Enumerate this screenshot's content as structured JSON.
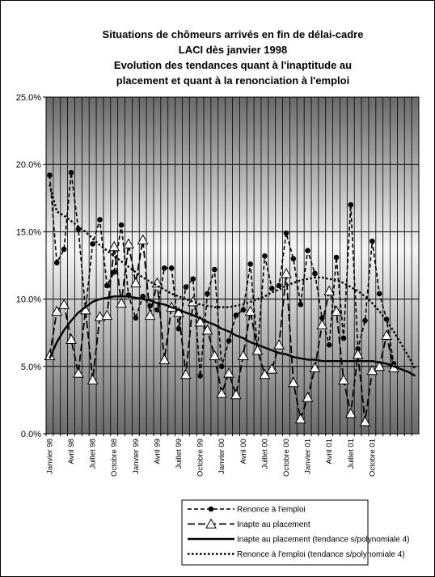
{
  "chart_data": {
    "type": "line",
    "title": [
      "Situations de chômeurs arrivés en fin de délai-cadre",
      "LACI dès janvier 1998",
      "Evolution des tendances quant à l'inaptitude au",
      "placement et quant à la renonciation à l'emploi"
    ],
    "categories": [
      "Janvier 98",
      null,
      null,
      "Avril 98",
      null,
      null,
      "Juillet 98",
      null,
      null,
      "Octobre 98",
      null,
      null,
      "Janvier 99",
      null,
      null,
      "Avril 99",
      null,
      null,
      "Juillet 99",
      null,
      null,
      "Octobre 99",
      null,
      null,
      "Janvier 00",
      null,
      null,
      "Avril 00",
      null,
      null,
      "Juillet 00",
      null,
      null,
      "Octobre 00",
      null,
      null,
      "Janvier 01",
      null,
      null,
      "Avril 01",
      null,
      null,
      "Juillet 01",
      null,
      null,
      "Octobre 01",
      null,
      null,
      null,
      null,
      null,
      null
    ],
    "ylim": [
      0,
      25
    ],
    "yticks": [
      {
        "value": 0,
        "label": "0.0%"
      },
      {
        "value": 5,
        "label": "5.0%"
      },
      {
        "value": 10,
        "label": "10.0%"
      },
      {
        "value": 15,
        "label": "15.0%"
      },
      {
        "value": 20,
        "label": "20.0%"
      },
      {
        "value": 25,
        "label": "25.0%"
      }
    ],
    "grid": true,
    "legend": "bottom",
    "series": [
      {
        "name": "Renonce à l'emploi",
        "color": "#000000",
        "marker": "circle",
        "line": "dashed",
        "values": [
          19.2,
          12.7,
          13.7,
          19.4,
          15.2,
          9.2,
          14.1,
          15.9,
          11.0,
          12.0,
          15.5,
          10.3,
          8.6,
          10.2,
          9.5,
          9.2,
          12.3,
          12.3,
          7.8,
          10.9,
          11.5,
          4.3,
          10.4,
          12.2,
          5.0,
          6.9,
          8.8,
          9.2,
          12.6,
          6.2,
          13.2,
          10.8,
          11.0,
          14.9,
          13.0,
          9.6,
          13.6,
          11.9,
          8.6,
          6.6,
          13.1,
          7.1,
          17.0,
          6.3,
          8.4,
          14.3,
          10.4,
          8.5,
          5.2,
          null,
          null,
          null
        ]
      },
      {
        "name": "Inapte au placement",
        "color": "#000000",
        "marker": "triangle",
        "line": "longdash",
        "values": [
          5.8,
          9.1,
          9.6,
          7.0,
          4.5,
          9.2,
          4.0,
          8.7,
          8.8,
          13.9,
          9.7,
          14.1,
          11.2,
          14.4,
          8.8,
          11.2,
          5.5,
          9.4,
          9.0,
          4.4,
          9.8,
          8.3,
          7.7,
          5.8,
          3.0,
          4.5,
          2.9,
          5.8,
          9.1,
          6.2,
          4.4,
          4.8,
          6.6,
          11.9,
          3.8,
          1.1,
          2.7,
          4.9,
          8.1,
          10.6,
          9.1,
          4.0,
          1.5,
          5.9,
          0.9,
          4.7,
          5.0,
          7.3,
          4.9,
          null,
          null,
          null
        ]
      },
      {
        "name": "Inapte au placement (tendance s/polynomiale 4)",
        "color": "#000000",
        "marker": "none",
        "line": "solid",
        "values": [
          5.6,
          6.8,
          7.7,
          8.4,
          9.0,
          9.4,
          9.8,
          10.0,
          10.1,
          10.2,
          10.2,
          10.2,
          10.1,
          10.0,
          9.9,
          9.7,
          9.6,
          9.4,
          9.2,
          9.0,
          8.8,
          8.6,
          8.3,
          8.1,
          7.8,
          7.6,
          7.3,
          7.1,
          6.8,
          6.6,
          6.4,
          6.2,
          6.0,
          5.9,
          5.7,
          5.6,
          5.5,
          5.5,
          5.4,
          5.4,
          5.4,
          5.4,
          5.4,
          5.4,
          5.4,
          5.4,
          5.3,
          5.2,
          5.0,
          4.8,
          4.6,
          4.3
        ]
      },
      {
        "name": "Renonce à l'emploi (tendance s/polynomiale 4)",
        "color": "#000000",
        "marker": "none",
        "line": "dotted",
        "values": [
          18.5,
          16.5,
          16.2,
          15.8,
          15.4,
          15.0,
          14.5,
          14.0,
          13.6,
          13.2,
          12.8,
          12.4,
          12.0,
          11.6,
          11.3,
          11.0,
          10.7,
          10.4,
          10.2,
          10.0,
          9.8,
          9.6,
          9.5,
          9.4,
          9.4,
          9.4,
          9.5,
          9.6,
          9.8,
          10.0,
          10.2,
          10.5,
          10.7,
          11.0,
          11.2,
          11.4,
          11.5,
          11.6,
          11.6,
          11.5,
          11.4,
          11.2,
          10.9,
          10.6,
          10.2,
          9.7,
          9.1,
          8.4,
          7.6,
          6.7,
          5.8,
          4.8
        ]
      }
    ]
  }
}
